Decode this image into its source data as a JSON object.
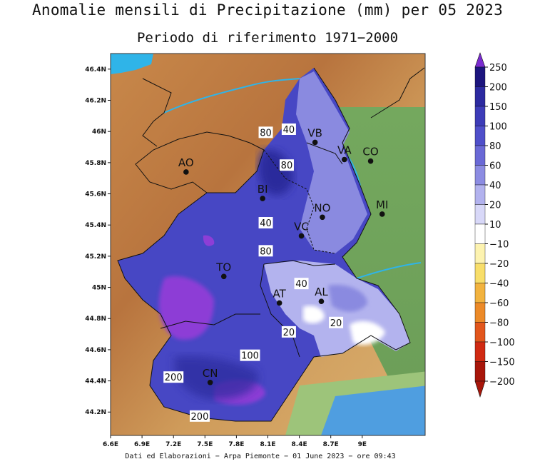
{
  "header": {
    "title": "Anomalie mensili di Precipitazione (mm) per 05 2023",
    "subtitle": "Periodo di riferimento 1971−2000"
  },
  "axes": {
    "lat_ticks": [
      "46.4N",
      "46.2N",
      "46N",
      "45.8N",
      "45.6N",
      "45.4N",
      "45.2N",
      "45N",
      "44.8N",
      "44.6N",
      "44.4N",
      "44.2N"
    ],
    "lon_ticks": [
      "6.6E",
      "6.9E",
      "7.2E",
      "7.5E",
      "7.8E",
      "8.1E",
      "8.4E",
      "8.7E",
      "9E"
    ]
  },
  "cities": [
    {
      "code": "AO",
      "lon": 7.32,
      "lat": 45.74
    },
    {
      "code": "VB",
      "lon": 8.55,
      "lat": 45.93
    },
    {
      "code": "VA",
      "lon": 8.83,
      "lat": 45.82
    },
    {
      "code": "CO",
      "lon": 9.08,
      "lat": 45.81
    },
    {
      "code": "BI",
      "lon": 8.05,
      "lat": 45.57
    },
    {
      "code": "NO",
      "lon": 8.62,
      "lat": 45.45
    },
    {
      "code": "MI",
      "lon": 9.19,
      "lat": 45.47
    },
    {
      "code": "VC",
      "lon": 8.42,
      "lat": 45.33
    },
    {
      "code": "TO",
      "lon": 7.68,
      "lat": 45.07
    },
    {
      "code": "AT",
      "lon": 8.21,
      "lat": 44.9
    },
    {
      "code": "AL",
      "lon": 8.61,
      "lat": 44.91
    },
    {
      "code": "CN",
      "lon": 7.55,
      "lat": 44.39
    }
  ],
  "contour_labels": [
    {
      "text": "40",
      "lon": 8.3,
      "lat": 46.01
    },
    {
      "text": "80",
      "lon": 8.08,
      "lat": 45.99
    },
    {
      "text": "80",
      "lon": 8.28,
      "lat": 45.78
    },
    {
      "text": "40",
      "lon": 8.08,
      "lat": 45.41
    },
    {
      "text": "80",
      "lon": 8.08,
      "lat": 45.23
    },
    {
      "text": "40",
      "lon": 8.42,
      "lat": 45.02
    },
    {
      "text": "20",
      "lon": 8.75,
      "lat": 44.77
    },
    {
      "text": "20",
      "lon": 8.3,
      "lat": 44.71
    },
    {
      "text": "100",
      "lon": 7.93,
      "lat": 44.56
    },
    {
      "text": "200",
      "lon": 7.2,
      "lat": 44.42
    },
    {
      "text": "200",
      "lon": 7.45,
      "lat": 44.17
    }
  ],
  "legend": {
    "levels": [
      "250",
      "200",
      "150",
      "100",
      "80",
      "60",
      "40",
      "20",
      "10",
      "−10",
      "−20",
      "−40",
      "−60",
      "−80",
      "−100",
      "−150",
      "−200"
    ],
    "colors": [
      "#7a2bd0",
      "#1c157e",
      "#2c2aa0",
      "#3d3cb8",
      "#4f4fca",
      "#6a69d6",
      "#8c8ce2",
      "#b2b2ee",
      "#d8d8f8",
      "#ffffff",
      "#fdf3b0",
      "#f8de6a",
      "#f2b33f",
      "#ec8a28",
      "#e2561c",
      "#d02a12",
      "#a8160a"
    ]
  },
  "footer": {
    "credit": "Dati ed Elaborazioni − Arpa Piemonte − 01 June 2023 − ore 09:43"
  },
  "colors": {
    "mountain": "#c98a4a",
    "mountain_high": "#a6683a",
    "lowland": "#7fb06a",
    "lake": "#2fb4e8",
    "sea": "#4f9ee0"
  }
}
